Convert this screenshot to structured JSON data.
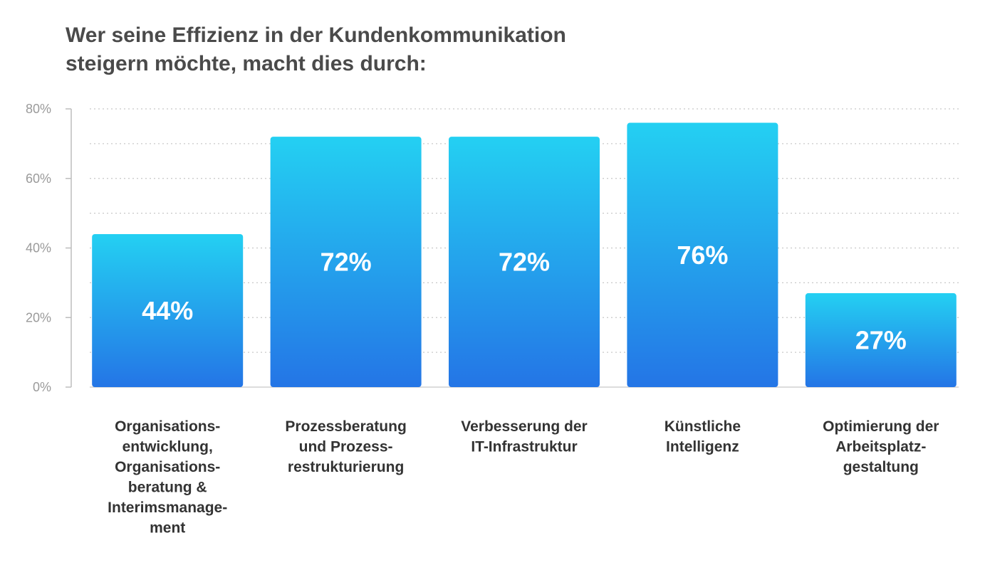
{
  "chart_data": {
    "type": "bar",
    "title_lines": [
      "Wer seine Effizienz in der Kundenkommunikation",
      "steigern möchte, macht dies durch:"
    ],
    "categories": [
      [
        "Organisations-",
        "entwicklung,",
        "Organisations-",
        "beratung &",
        "Interimsmanage-",
        "ment"
      ],
      [
        "Prozessberatung",
        "und Prozess-",
        "restrukturierung"
      ],
      [
        "Verbesserung der",
        "IT-Infrastruktur"
      ],
      [
        "Künstliche",
        "Intelligenz"
      ],
      [
        "Optimierung der",
        "Arbeitsplatz-",
        "gestaltung"
      ]
    ],
    "values": [
      44,
      72,
      72,
      76,
      27
    ],
    "value_labels": [
      "44%",
      "72%",
      "72%",
      "76%",
      "27%"
    ],
    "ylim": [
      0,
      80
    ],
    "yticks": [
      0,
      20,
      40,
      60,
      80
    ],
    "ytick_labels": [
      "0%",
      "20%",
      "40%",
      "60%",
      "80%"
    ],
    "grid": true,
    "grid_style": "dotted",
    "xlabel": "",
    "ylabel": "",
    "bar_color_top": "#24d0f2",
    "bar_color_bottom": "#2475e6",
    "grid_color": "#c8c8c8",
    "axis_color": "#bdbdbd"
  }
}
